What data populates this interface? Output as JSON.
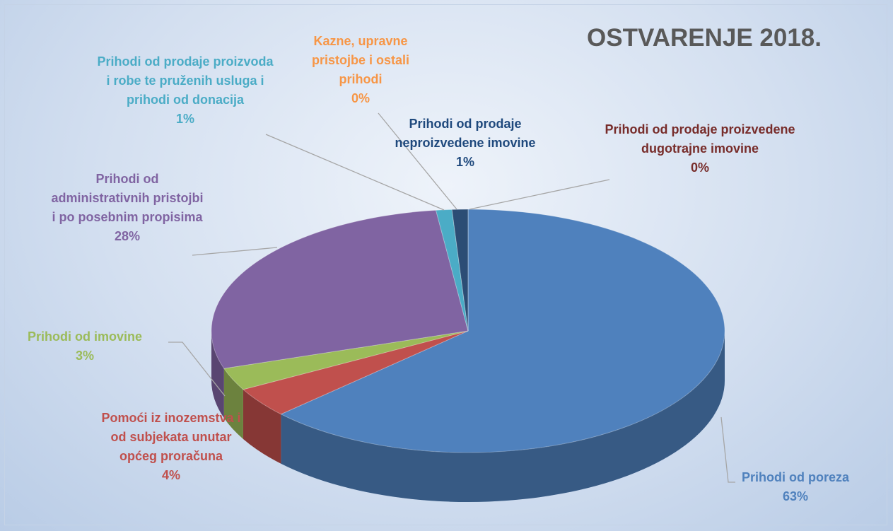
{
  "chart_data": {
    "type": "pie",
    "title": "OSTVARENJE 2018.",
    "categories": [
      "Prihodi od poreza",
      "Pomoći iz inozemstva i od subjekata unutar općeg proračuna",
      "Prihodi od imovine",
      "Prihodi od administrativnih pristojbi i po posebnim propisima",
      "Prihodi od prodaje proizvoda i robe te pruženih usluga i prihodi od donacija",
      "Kazne, upravne pristojbe i ostali prihodi",
      "Prihodi od prodaje neproizvedene imovine",
      "Prihodi od prodaje proizvedene dugotrajne imovine"
    ],
    "values": [
      63,
      4,
      3,
      28,
      1,
      0,
      1,
      0
    ],
    "value_labels": [
      "63%",
      "4%",
      "3%",
      "28%",
      "1%",
      "0%",
      "1%",
      "0%"
    ],
    "colors": [
      "#4f81bd",
      "#c0504d",
      "#9bbb59",
      "#8064a2",
      "#4bacc6",
      "#f79646",
      "#2c4d75",
      "#772c2a"
    ]
  }
}
